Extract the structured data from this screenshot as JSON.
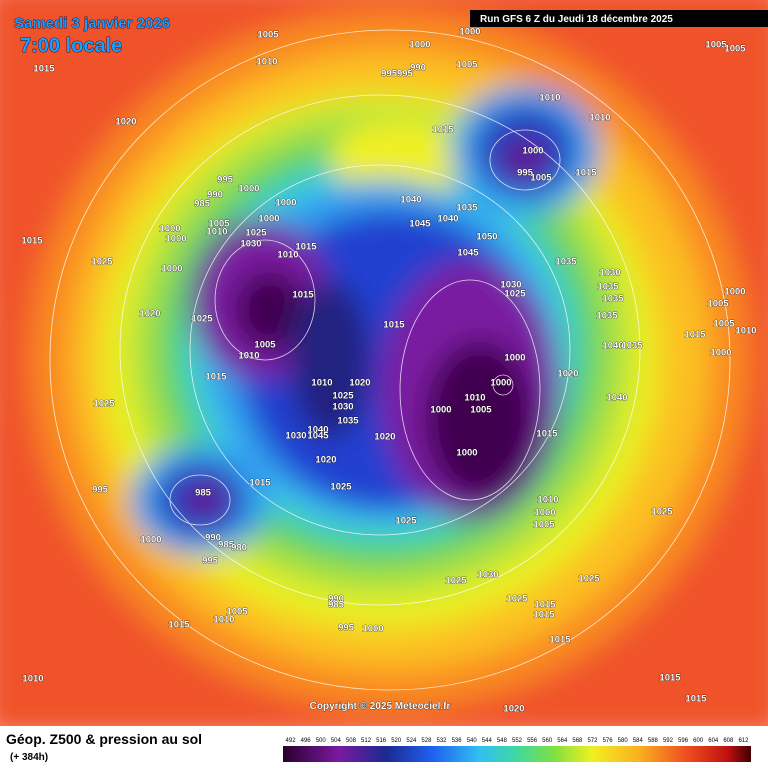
{
  "header": {
    "date": "Samedi 3 janvier 2026",
    "time": "7:00 locale",
    "run": "Run GFS 6 Z du Jeudi 18 décembre 2025"
  },
  "copyright": "Copyright © 2025 Meteociel.fr",
  "footer": {
    "title": "Géop. Z500 & pression au sol",
    "lead": "(+ 384h)"
  },
  "colorbar": {
    "ticks": [
      492,
      496,
      500,
      504,
      508,
      512,
      516,
      520,
      524,
      528,
      532,
      536,
      540,
      544,
      548,
      552,
      556,
      560,
      564,
      568,
      572,
      576,
      580,
      584,
      588,
      592,
      596,
      600,
      604,
      608,
      612
    ]
  },
  "pressure_labels": [
    "1005",
    "1010",
    "1015",
    "1000",
    "1000",
    "1005",
    "995995",
    "990",
    "1005",
    "1005",
    "1020",
    "1015",
    "1010",
    "1010",
    "1000",
    "995",
    "1005",
    "1015",
    "995",
    "990",
    "1000",
    "985",
    "1000",
    "1040",
    "1045",
    "1040",
    "1035",
    "1005",
    "1010",
    "1000",
    "1000",
    "1000",
    "1025",
    "1015",
    "1030",
    "1010",
    "1015",
    "1050",
    "1045",
    "1035",
    "1025",
    "1000",
    "1030",
    "1025",
    "1030",
    "1035",
    "1035",
    "1035",
    "1000",
    "1005",
    "1005",
    "1010",
    "1015",
    "1000",
    "1015",
    "1020",
    "1025",
    "1015",
    "1005",
    "1010",
    "1040",
    "1035",
    "1000",
    "1020",
    "1015",
    "1000",
    "1010",
    "1020",
    "1025",
    "1030",
    "1010",
    "1040",
    "1025",
    "1005",
    "1000",
    "1035",
    "1040",
    "1045",
    "1030",
    "1020",
    "1015",
    "1000",
    "1020",
    "1015",
    "1025",
    "995",
    "985",
    "1010",
    "1000",
    "1005",
    "1025",
    "1025",
    "1000",
    "990",
    "985",
    "980",
    "995",
    "1030",
    "1025",
    "1025",
    "1025",
    "1015",
    "1015",
    "990",
    "985",
    "1005",
    "1010",
    "1015",
    "995",
    "1000",
    "1015",
    "1010",
    "1015",
    "1015",
    "1020"
  ]
}
